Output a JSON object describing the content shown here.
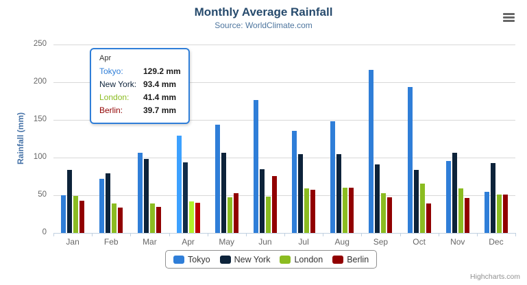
{
  "header": {
    "title": "Monthly Average Rainfall",
    "subtitle": "Source: WorldClimate.com"
  },
  "chart_data": {
    "type": "bar",
    "title": "Monthly Average Rainfall",
    "subtitle": "Source: WorldClimate.com",
    "categories": [
      "Jan",
      "Feb",
      "Mar",
      "Apr",
      "May",
      "Jun",
      "Jul",
      "Aug",
      "Sep",
      "Oct",
      "Nov",
      "Dec"
    ],
    "series": [
      {
        "name": "Tokyo",
        "color": "#2f7ed8",
        "values": [
          49.9,
          71.5,
          106.4,
          129.2,
          144.0,
          176.0,
          135.6,
          148.5,
          216.4,
          194.1,
          95.6,
          54.4
        ]
      },
      {
        "name": "New York",
        "color": "#0d233a",
        "values": [
          83.6,
          78.8,
          98.5,
          93.4,
          106.0,
          84.5,
          105.0,
          104.3,
          91.2,
          83.5,
          106.6,
          92.3
        ]
      },
      {
        "name": "London",
        "color": "#8bbc21",
        "values": [
          48.9,
          38.8,
          39.3,
          41.4,
          47.0,
          48.3,
          59.0,
          59.6,
          52.4,
          65.2,
          59.3,
          51.2
        ]
      },
      {
        "name": "Berlin",
        "color": "#910000",
        "values": [
          42.4,
          33.2,
          34.5,
          39.7,
          52.6,
          75.5,
          57.4,
          60.4,
          47.6,
          39.1,
          46.8,
          51.1
        ]
      }
    ],
    "xlabel": "",
    "ylabel": "Rainfall (mm)",
    "yticks": [
      0,
      50,
      100,
      150,
      200,
      250
    ],
    "ylim": [
      0,
      250
    ],
    "grid": true,
    "legend_position": "bottom",
    "hovered_category": "Apr"
  },
  "tooltip": {
    "header": "Apr",
    "border_color": "#2f7ed8",
    "rows": [
      {
        "label": "Tokyo:",
        "value": "129.2 mm",
        "color": "#2f7ed8"
      },
      {
        "label": "New York:",
        "value": "93.4 mm",
        "color": "#0d233a"
      },
      {
        "label": "London:",
        "value": "41.4 mm",
        "color": "#8bbc21"
      },
      {
        "label": "Berlin:",
        "value": "39.7 mm",
        "color": "#910000"
      }
    ]
  },
  "icons": {
    "export_menu": "hamburger-icon"
  },
  "credits": "Highcharts.com",
  "colors": {
    "title": "#274b6d",
    "subtitle": "#4d759e",
    "axis_title": "#4572a7",
    "axis_labels": "#666666",
    "gridline": "#d8d8d8",
    "axis_line": "#c0d0e0",
    "legend_border": "#909090",
    "credits": "#909090",
    "background": "#ffffff"
  }
}
